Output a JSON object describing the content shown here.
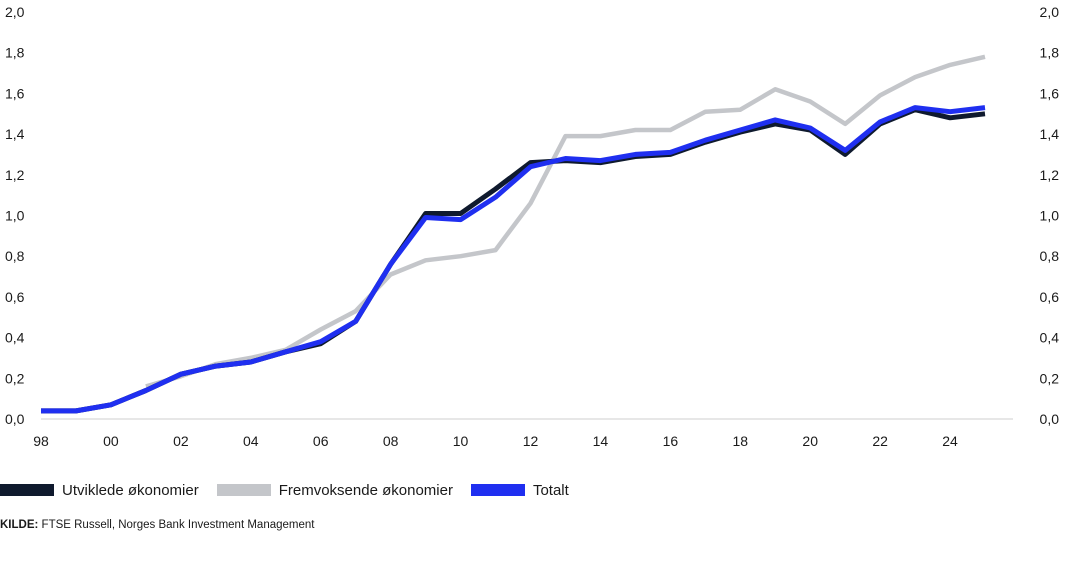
{
  "chart_data": {
    "type": "line",
    "x_ticks": [
      "98",
      "00",
      "02",
      "04",
      "06",
      "08",
      "10",
      "12",
      "14",
      "16",
      "18",
      "20",
      "22",
      "24"
    ],
    "y_ticks": [
      "0,0",
      "0,2",
      "0,4",
      "0,6",
      "0,8",
      "1,0",
      "1,2",
      "1,4",
      "1,6",
      "1,8",
      "2,0"
    ],
    "ylim": [
      0,
      2.0
    ],
    "xlim": [
      1998,
      2025.8
    ],
    "grid": false,
    "legend_position": "bottom-left",
    "series": [
      {
        "name": "Utviklede økonomier",
        "color": "#0f1a2e",
        "x": [
          1998,
          1999,
          2000,
          2001,
          2002,
          2003,
          2004,
          2005,
          2006,
          2007,
          2008,
          2009,
          2010,
          2011,
          2012,
          2013,
          2014,
          2015,
          2016,
          2017,
          2018,
          2019,
          2020,
          2021,
          2022,
          2023,
          2024,
          2025
        ],
        "values": [
          0.04,
          0.04,
          0.07,
          0.14,
          0.22,
          0.26,
          0.28,
          0.33,
          0.37,
          0.48,
          0.76,
          1.01,
          1.01,
          1.13,
          1.26,
          1.27,
          1.26,
          1.29,
          1.3,
          1.36,
          1.41,
          1.45,
          1.42,
          1.3,
          1.45,
          1.52,
          1.48,
          1.5
        ]
      },
      {
        "name": "Fremvoksende økonomier",
        "color": "#c4c6ca",
        "x": [
          2001,
          2002,
          2003,
          2004,
          2005,
          2006,
          2007,
          2008,
          2009,
          2010,
          2011,
          2012,
          2013,
          2014,
          2015,
          2016,
          2017,
          2018,
          2019,
          2020,
          2021,
          2022,
          2023,
          2024,
          2025
        ],
        "values": [
          0.16,
          0.21,
          0.27,
          0.3,
          0.34,
          0.44,
          0.53,
          0.71,
          0.78,
          0.8,
          0.83,
          1.06,
          1.39,
          1.39,
          1.42,
          1.42,
          1.51,
          1.52,
          1.62,
          1.56,
          1.45,
          1.59,
          1.68,
          1.74,
          1.78
        ]
      },
      {
        "name": "Totalt",
        "color": "#1f2ff0",
        "x": [
          1998,
          1999,
          2000,
          2001,
          2002,
          2003,
          2004,
          2005,
          2006,
          2007,
          2008,
          2009,
          2010,
          2011,
          2012,
          2013,
          2014,
          2015,
          2016,
          2017,
          2018,
          2019,
          2020,
          2021,
          2022,
          2023,
          2024,
          2025
        ],
        "values": [
          0.04,
          0.04,
          0.07,
          0.14,
          0.22,
          0.26,
          0.28,
          0.33,
          0.38,
          0.48,
          0.76,
          0.99,
          0.98,
          1.09,
          1.24,
          1.28,
          1.27,
          1.3,
          1.31,
          1.37,
          1.42,
          1.47,
          1.43,
          1.32,
          1.46,
          1.53,
          1.51,
          1.53
        ]
      }
    ]
  },
  "legend": [
    {
      "label": "Utviklede økonomier",
      "color": "#0f1a2e"
    },
    {
      "label": "Fremvoksende økonomier",
      "color": "#c4c6ca"
    },
    {
      "label": "Totalt",
      "color": "#1f2ff0"
    }
  ],
  "source": {
    "label": "KILDE:",
    "text": " FTSE Russell, Norges Bank Investment Management"
  }
}
